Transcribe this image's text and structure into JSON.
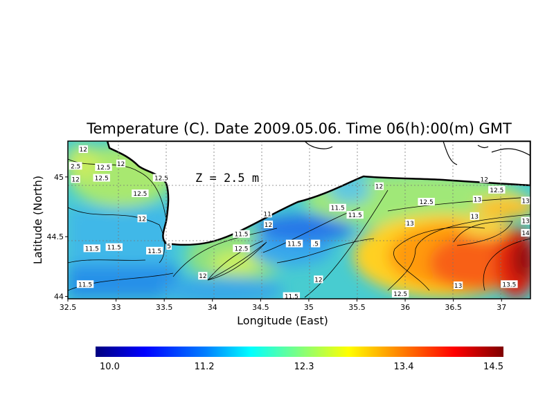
{
  "chart_data": {
    "type": "heatmap",
    "title": "Temperature (C). Date 2009.05.06. Time 06(h):00(m) GMT",
    "xlabel": "Longitude (East)",
    "ylabel": "Latitude (North)",
    "annotation": "Z = 2.5 m",
    "xlim": [
      32.5,
      37.3
    ],
    "ylim": [
      43.98,
      45.3
    ],
    "x_ticks": [
      {
        "value": 32.5,
        "label": "32.5"
      },
      {
        "value": 33,
        "label": "33"
      },
      {
        "value": 33.5,
        "label": "33.5"
      },
      {
        "value": 34,
        "label": "34"
      },
      {
        "value": 34.5,
        "label": "34.5"
      },
      {
        "value": 35,
        "label": "35"
      },
      {
        "value": 35.5,
        "label": "35.5"
      },
      {
        "value": 36,
        "label": "36"
      },
      {
        "value": 36.5,
        "label": "36.5"
      },
      {
        "value": 37,
        "label": "37"
      }
    ],
    "y_ticks": [
      {
        "value": 44,
        "label": "44"
      },
      {
        "value": 44.5,
        "label": "44.5"
      },
      {
        "value": 45,
        "label": "45"
      }
    ],
    "grid": true,
    "colorbar": {
      "min": 10.0,
      "max": 14.5,
      "labels": [
        "10.0",
        "11.2",
        "12.3",
        "13.4",
        "14.5"
      ],
      "label_values": [
        10.0,
        11.2,
        12.3,
        13.4,
        14.5
      ],
      "colormap": [
        "#00007f",
        "#0000ff",
        "#007fff",
        "#00ffff",
        "#7fff7f",
        "#ffff00",
        "#ff7f00",
        "#ff0000",
        "#7f0000"
      ]
    },
    "contour_labels": [
      {
        "lon": 32.66,
        "lat": 45.23,
        "text": "12"
      },
      {
        "lon": 32.58,
        "lat": 45.09,
        "text": "2.5"
      },
      {
        "lon": 32.87,
        "lat": 45.08,
        "text": "12.5"
      },
      {
        "lon": 33.05,
        "lat": 45.11,
        "text": "12"
      },
      {
        "lon": 32.58,
        "lat": 44.98,
        "text": "12"
      },
      {
        "lon": 32.85,
        "lat": 44.99,
        "text": "12.5"
      },
      {
        "lon": 33.47,
        "lat": 44.99,
        "text": "12.5"
      },
      {
        "lon": 33.25,
        "lat": 44.86,
        "text": "12.5"
      },
      {
        "lon": 33.27,
        "lat": 44.65,
        "text": "12"
      },
      {
        "lon": 32.98,
        "lat": 44.41,
        "text": "11.5"
      },
      {
        "lon": 33.4,
        "lat": 44.38,
        "text": "11.5"
      },
      {
        "lon": 33.55,
        "lat": 44.42,
        "text": "5"
      },
      {
        "lon": 32.75,
        "lat": 44.4,
        "text": "11.5"
      },
      {
        "lon": 32.68,
        "lat": 44.1,
        "text": "11.5"
      },
      {
        "lon": 33.9,
        "lat": 44.17,
        "text": "12"
      },
      {
        "lon": 34.3,
        "lat": 44.4,
        "text": "12.5"
      },
      {
        "lon": 34.3,
        "lat": 44.52,
        "text": "11.5"
      },
      {
        "lon": 34.57,
        "lat": 44.69,
        "text": "11"
      },
      {
        "lon": 34.58,
        "lat": 44.6,
        "text": "12"
      },
      {
        "lon": 34.85,
        "lat": 44.44,
        "text": "11.5"
      },
      {
        "lon": 35.07,
        "lat": 44.44,
        "text": ".5"
      },
      {
        "lon": 35.3,
        "lat": 44.74,
        "text": "11.5"
      },
      {
        "lon": 35.48,
        "lat": 44.68,
        "text": "11.5"
      },
      {
        "lon": 35.1,
        "lat": 44.14,
        "text": "12"
      },
      {
        "lon": 34.82,
        "lat": 44.0,
        "text": "11.5"
      },
      {
        "lon": 35.73,
        "lat": 44.92,
        "text": "12"
      },
      {
        "lon": 35.95,
        "lat": 44.02,
        "text": "12.5"
      },
      {
        "lon": 36.22,
        "lat": 44.79,
        "text": "12.5"
      },
      {
        "lon": 36.05,
        "lat": 44.61,
        "text": "13"
      },
      {
        "lon": 36.82,
        "lat": 44.98,
        "text": "12"
      },
      {
        "lon": 36.95,
        "lat": 44.89,
        "text": "12.5"
      },
      {
        "lon": 36.75,
        "lat": 44.81,
        "text": "13"
      },
      {
        "lon": 37.25,
        "lat": 44.8,
        "text": "13"
      },
      {
        "lon": 36.72,
        "lat": 44.67,
        "text": "13"
      },
      {
        "lon": 37.25,
        "lat": 44.63,
        "text": "13"
      },
      {
        "lon": 37.25,
        "lat": 44.53,
        "text": "14"
      },
      {
        "lon": 36.55,
        "lat": 44.09,
        "text": "13"
      },
      {
        "lon": 37.08,
        "lat": 44.1,
        "text": "13.5"
      }
    ]
  }
}
